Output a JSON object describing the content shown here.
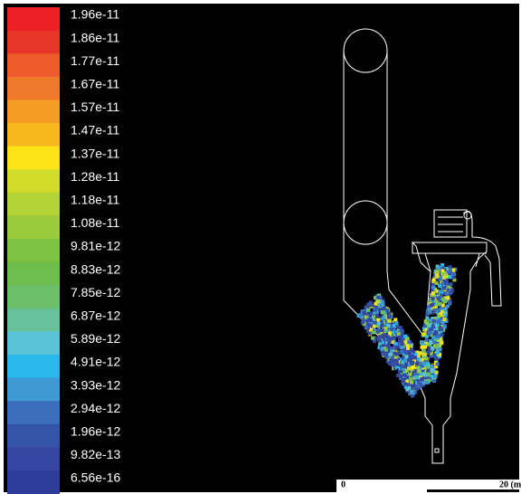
{
  "colorbar": {
    "labels": [
      "1.96e-11",
      "1.86e-11",
      "1.77e-11",
      "1.67e-11",
      "1.57e-11",
      "1.47e-11",
      "1.37e-11",
      "1.28e-11",
      "1.18e-11",
      "1.08e-11",
      "9.81e-12",
      "8.83e-12",
      "7.85e-12",
      "6.87e-12",
      "5.89e-12",
      "4.91e-12",
      "3.93e-12",
      "2.94e-12",
      "1.96e-12",
      "9.82e-13",
      "6.56e-16"
    ],
    "colors": [
      "#ee2025",
      "#e8352a",
      "#ef5a2c",
      "#f07a2c",
      "#f39b25",
      "#f7b81f",
      "#fde418",
      "#d2dc2a",
      "#b3d235",
      "#9acb3c",
      "#7dc242",
      "#6dbe4c",
      "#6cbf68",
      "#67c29b",
      "#5ac4d6",
      "#2bb9ea",
      "#3d9ad3",
      "#3b6fbc",
      "#3554a8",
      "#3346a0",
      "#2e3d97"
    ]
  },
  "scale_bar": {
    "start": "0",
    "end": "20 (m"
  }
}
